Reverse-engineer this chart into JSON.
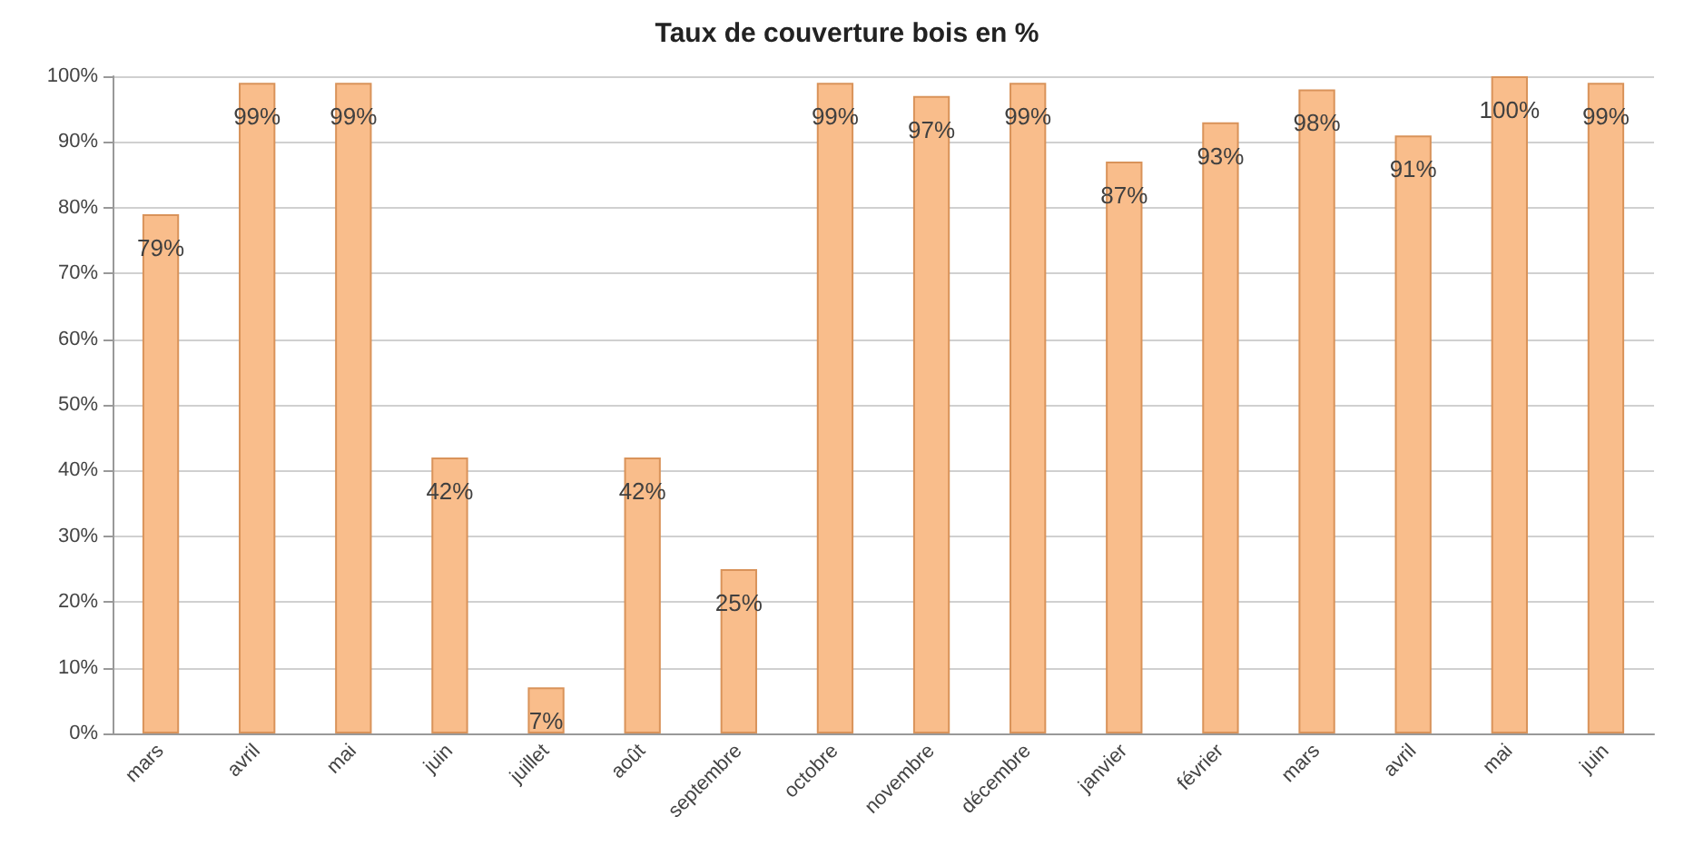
{
  "chart_data": {
    "type": "bar",
    "title": "Taux de couverture bois en %",
    "categories": [
      "mars",
      "avril",
      "mai",
      "juin",
      "juillet",
      "août",
      "septembre",
      "octobre",
      "novembre",
      "décembre",
      "janvier",
      "février",
      "mars",
      "avril",
      "mai",
      "juin"
    ],
    "values": [
      79,
      99,
      99,
      42,
      7,
      42,
      25,
      99,
      97,
      99,
      87,
      93,
      98,
      91,
      100,
      99
    ],
    "value_labels": [
      "79%",
      "99%",
      "99%",
      "42%",
      "7%",
      "42%",
      "25%",
      "99%",
      "97%",
      "99%",
      "87%",
      "93%",
      "98%",
      "91%",
      "100%",
      "99%"
    ],
    "color": "#f9bd8b",
    "ylim": [
      0,
      100
    ],
    "yticks": [
      {
        "value": 0,
        "label": "0%"
      },
      {
        "value": 10,
        "label": "10%"
      },
      {
        "value": 20,
        "label": "20%"
      },
      {
        "value": 30,
        "label": "30%"
      },
      {
        "value": 40,
        "label": "40%"
      },
      {
        "value": 50,
        "label": "50%"
      },
      {
        "value": 60,
        "label": "60%"
      },
      {
        "value": 70,
        "label": "70%"
      },
      {
        "value": 80,
        "label": "80%"
      },
      {
        "value": 90,
        "label": "90%"
      },
      {
        "value": 100,
        "label": "100%"
      }
    ],
    "grid": "y"
  }
}
